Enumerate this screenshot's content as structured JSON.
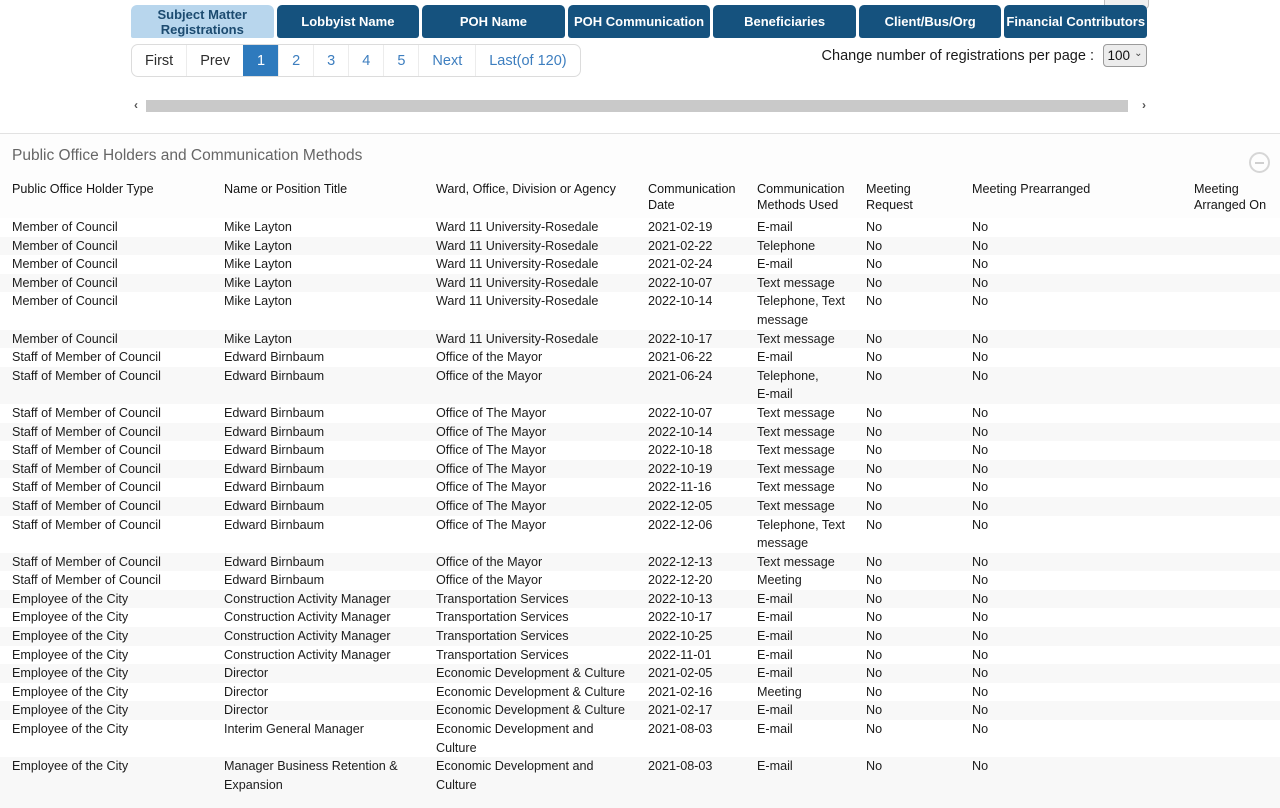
{
  "colors": {
    "tab_blue": "#15527e",
    "tab_active_bg": "#b8d6ed",
    "tab_active_fg": "#1c4b70",
    "link_blue": "#3d7ebf",
    "active_page_bg": "#2e7abd"
  },
  "icons": {
    "scroll_left": "‹",
    "scroll_right": "›",
    "select_caret": "⌄"
  },
  "tabs": [
    {
      "label": "Subject Matter\nRegistrations",
      "active": true
    },
    {
      "label": "Lobbyist Name",
      "active": false
    },
    {
      "label": "POH Name",
      "active": false
    },
    {
      "label": "POH Communication",
      "active": false
    },
    {
      "label": "Beneficiaries",
      "active": false
    },
    {
      "label": "Client/Bus/Org",
      "active": false
    },
    {
      "label": "Financial Contributors",
      "active": false
    }
  ],
  "pagination": {
    "items": [
      {
        "label": "First"
      },
      {
        "label": "Prev"
      },
      {
        "label": "1",
        "active": true
      },
      {
        "label": "2",
        "link": true
      },
      {
        "label": "3",
        "link": true
      },
      {
        "label": "4",
        "link": true
      },
      {
        "label": "5",
        "link": true
      },
      {
        "label": "Next",
        "link": true
      },
      {
        "label": "Last(of 120)",
        "link": true
      }
    ]
  },
  "per_page": {
    "label": "Change number of registrations per page :",
    "value": "100"
  },
  "section": {
    "title": "Public Office Holders and Communication Methods"
  },
  "table": {
    "headers": [
      "Public Office Holder Type",
      "Name or Position Title",
      "Ward, Office, Division or Agency",
      "Communication\nDate",
      "Communication\nMethods Used",
      "Meeting\nRequest",
      "Meeting Prearranged",
      "Meeting\nArranged On"
    ],
    "rows": [
      [
        "Member of Council",
        "Mike Layton",
        "Ward 11 University-Rosedale",
        "2021-02-19",
        "E-mail",
        "No",
        "No",
        ""
      ],
      [
        "Member of Council",
        "Mike Layton",
        "Ward 11 University-Rosedale",
        "2021-02-22",
        "Telephone",
        "No",
        "No",
        ""
      ],
      [
        "Member of Council",
        "Mike Layton",
        "Ward 11 University-Rosedale",
        "2021-02-24",
        "E-mail",
        "No",
        "No",
        ""
      ],
      [
        "Member of Council",
        "Mike Layton",
        "Ward 11 University-Rosedale",
        "2022-10-07",
        "Text message",
        "No",
        "No",
        ""
      ],
      [
        "Member of Council",
        "Mike Layton",
        "Ward 11 University-Rosedale",
        "2022-10-14",
        "Telephone, Text\nmessage",
        "No",
        "No",
        ""
      ],
      [
        "Member of Council",
        "Mike Layton",
        "Ward 11 University-Rosedale",
        "2022-10-17",
        "Text message",
        "No",
        "No",
        ""
      ],
      [
        "Staff of Member of Council",
        "Edward Birnbaum",
        "Office of the Mayor",
        "2021-06-22",
        "E-mail",
        "No",
        "No",
        ""
      ],
      [
        "Staff of Member of Council",
        "Edward Birnbaum",
        "Office of the Mayor",
        "2021-06-24",
        "Telephone,\nE-mail",
        "No",
        "No",
        ""
      ],
      [
        "Staff of Member of Council",
        "Edward Birnbaum",
        "Office of The Mayor",
        "2022-10-07",
        "Text message",
        "No",
        "No",
        ""
      ],
      [
        "Staff of Member of Council",
        "Edward Birnbaum",
        "Office of The Mayor",
        "2022-10-14",
        "Text message",
        "No",
        "No",
        ""
      ],
      [
        "Staff of Member of Council",
        "Edward Birnbaum",
        "Office of The Mayor",
        "2022-10-18",
        "Text message",
        "No",
        "No",
        ""
      ],
      [
        "Staff of Member of Council",
        "Edward Birnbaum",
        "Office of The Mayor",
        "2022-10-19",
        "Text message",
        "No",
        "No",
        ""
      ],
      [
        "Staff of Member of Council",
        "Edward Birnbaum",
        "Office of The Mayor",
        "2022-11-16",
        "Text message",
        "No",
        "No",
        ""
      ],
      [
        "Staff of Member of Council",
        "Edward Birnbaum",
        "Office of The Mayor",
        "2022-12-05",
        "Text message",
        "No",
        "No",
        ""
      ],
      [
        "Staff of Member of Council",
        "Edward Birnbaum",
        "Office of The Mayor",
        "2022-12-06",
        "Telephone, Text\nmessage",
        "No",
        "No",
        ""
      ],
      [
        "Staff of Member of Council",
        "Edward Birnbaum",
        "Office of the Mayor",
        "2022-12-13",
        "Text message",
        "No",
        "No",
        ""
      ],
      [
        "Staff of Member of Council",
        "Edward Birnbaum",
        "Office of the Mayor",
        "2022-12-20",
        "Meeting",
        "No",
        "No",
        ""
      ],
      [
        "Employee of the City",
        "Construction Activity Manager",
        "Transportation Services",
        "2022-10-13",
        "E-mail",
        "No",
        "No",
        ""
      ],
      [
        "Employee of the City",
        "Construction Activity Manager",
        "Transportation Services",
        "2022-10-17",
        "E-mail",
        "No",
        "No",
        ""
      ],
      [
        "Employee of the City",
        "Construction Activity Manager",
        "Transportation Services",
        "2022-10-25",
        "E-mail",
        "No",
        "No",
        ""
      ],
      [
        "Employee of the City",
        "Construction Activity Manager",
        "Transportation Services",
        "2022-11-01",
        "E-mail",
        "No",
        "No",
        ""
      ],
      [
        "Employee of the City",
        "Director",
        "Economic Development & Culture",
        "2021-02-05",
        "E-mail",
        "No",
        "No",
        ""
      ],
      [
        "Employee of the City",
        "Director",
        "Economic Development & Culture",
        "2021-02-16",
        "Meeting",
        "No",
        "No",
        ""
      ],
      [
        "Employee of the City",
        "Director",
        "Economic Development & Culture",
        "2021-02-17",
        "E-mail",
        "No",
        "No",
        ""
      ],
      [
        "Employee of the City",
        "Interim General Manager",
        "Economic Development and\nCulture",
        "2021-08-03",
        "E-mail",
        "No",
        "No",
        ""
      ],
      [
        "Employee of the City",
        "Manager Business Retention &\nExpansion",
        "Economic Development and\nCulture",
        "2021-08-03",
        "E-mail",
        "No",
        "No",
        ""
      ]
    ]
  }
}
